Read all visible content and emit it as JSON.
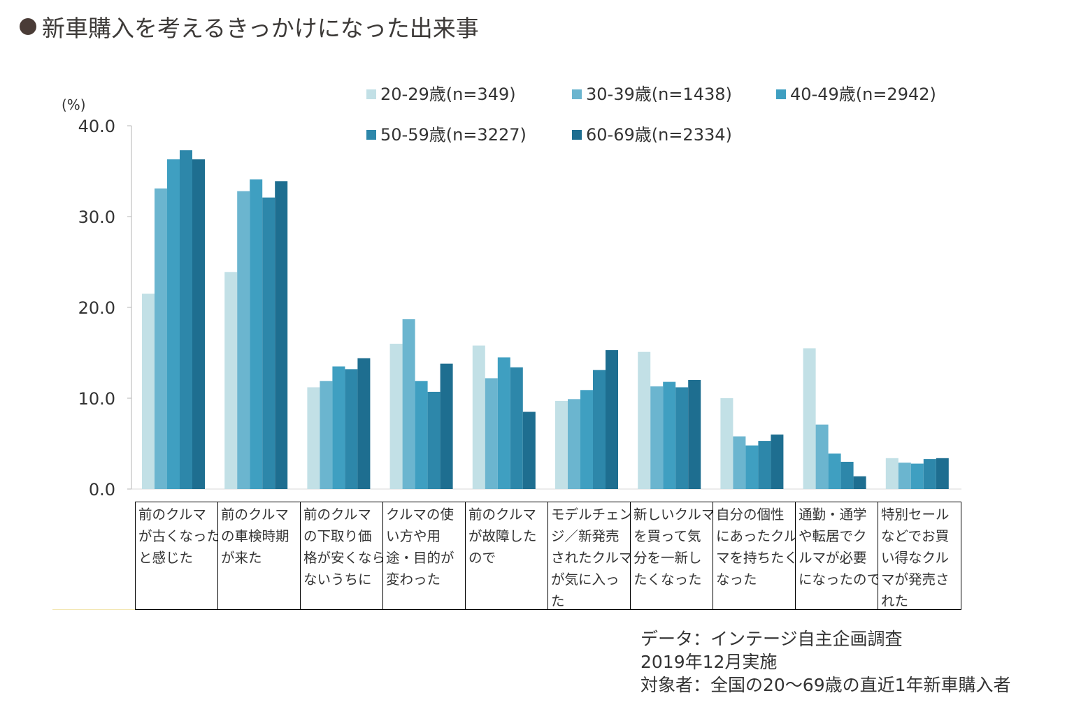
{
  "title": "新車購入を考えるきっかけになった出来事",
  "chart_data": {
    "type": "bar",
    "title": "新車購入を考えるきっかけになった出来事",
    "ylabel": "(%)",
    "ylim": [
      0,
      40
    ],
    "yticks": [
      "0.0",
      "10.0",
      "20.0",
      "30.0",
      "40.0"
    ],
    "tick_values": [
      0,
      10,
      20,
      30,
      40
    ],
    "grid": false,
    "legend_position": "top",
    "categories": [
      "前のクルマ\nが古くなった\nと感じた",
      "前のクルマ\nの車検時期\nが来た",
      "前のクルマ\nの下取り価\n格が安くなら\nないうちに",
      "クルマの使\nい方や用\n途・目的が\n変わった",
      "前のクルマ\nが故障した\nので",
      "モデルチェン\nジ／新発売\nされたクルマ\nが気に入っ\nた",
      "新しいクルマ\nを買って気\n分を一新し\nたくなった",
      "自分の個性\nにあったクル\nマを持ちたく\nなった",
      "通勤・通学\nや転居でク\nルマが必要\nになったので",
      "特別セール\nなどでお買\nい得なクル\nマが発売さ\nれた"
    ],
    "series": [
      {
        "name": "20-29歳(n=349)",
        "color": "#c2e0e6",
        "values": [
          21.5,
          23.9,
          11.2,
          16.0,
          15.8,
          9.7,
          15.1,
          10.0,
          15.5,
          3.4
        ]
      },
      {
        "name": "30-39歳(n=1438)",
        "color": "#6bb5cf",
        "values": [
          33.1,
          32.8,
          11.9,
          18.7,
          12.2,
          9.9,
          11.3,
          5.8,
          7.1,
          2.9
        ]
      },
      {
        "name": "40-49歳(n=2942)",
        "color": "#3f9fc1",
        "values": [
          36.3,
          34.1,
          13.5,
          11.9,
          14.5,
          10.9,
          11.8,
          4.8,
          3.9,
          2.8
        ]
      },
      {
        "name": "50-59歳(n=3227)",
        "color": "#2d87aa",
        "values": [
          37.3,
          32.1,
          13.2,
          10.7,
          13.4,
          13.1,
          11.2,
          5.3,
          3.0,
          3.3
        ]
      },
      {
        "name": "60-69歳(n=2334)",
        "color": "#1e6e90",
        "values": [
          36.3,
          33.9,
          14.4,
          13.8,
          8.5,
          15.3,
          12.0,
          6.0,
          1.4,
          3.4
        ]
      }
    ]
  },
  "source": {
    "line1": "データ：インテージ自主企画調査",
    "line2": "2019年12月実施",
    "line3": "対象者：全国の20～69歳の直近1年新車購入者"
  }
}
